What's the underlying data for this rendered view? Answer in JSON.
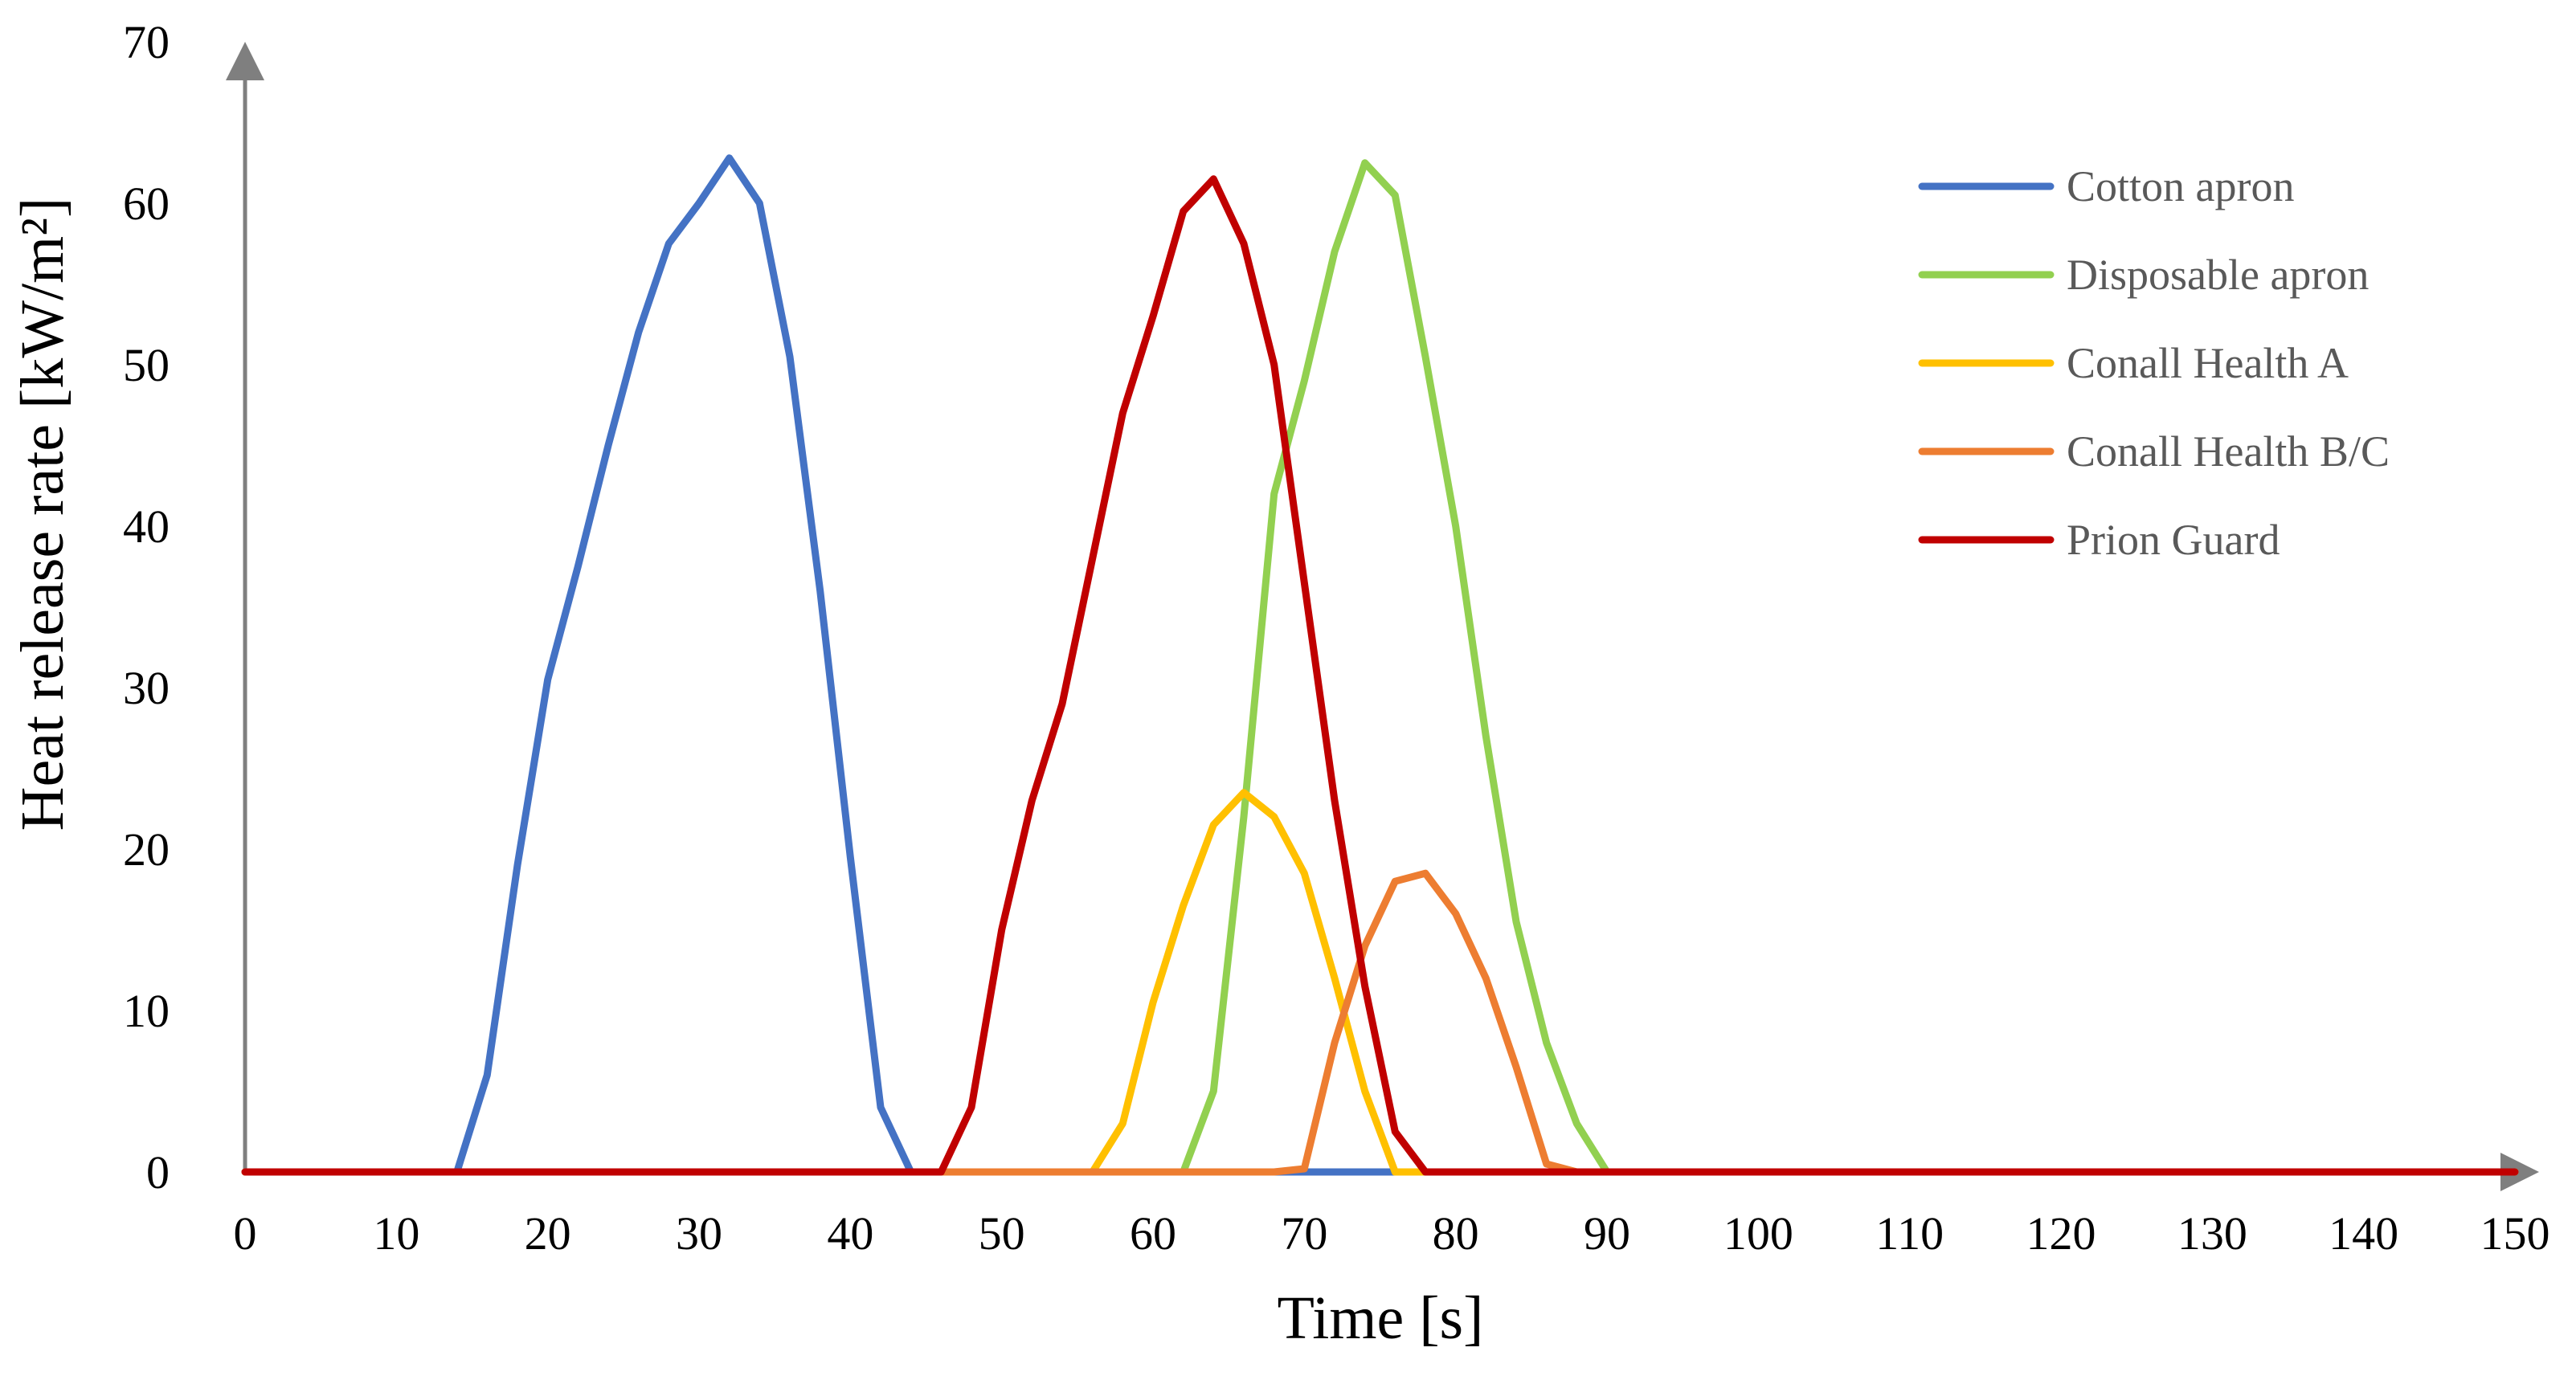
{
  "chart_data": {
    "type": "line",
    "title": "",
    "xlabel": "Time [s]",
    "ylabel": "Heat release rate [kW/m²]",
    "xlim": [
      0,
      150
    ],
    "ylim": [
      0,
      70
    ],
    "xticks": [
      0,
      10,
      20,
      30,
      40,
      50,
      60,
      70,
      80,
      90,
      100,
      110,
      120,
      130,
      140,
      150
    ],
    "yticks": [
      0,
      10,
      20,
      30,
      40,
      50,
      60,
      70
    ],
    "grid": false,
    "legend_position": "top-right",
    "series": [
      {
        "name": "Cotton apron",
        "color": "#4472C4",
        "x": [
          0,
          14,
          16,
          18,
          20,
          22,
          24,
          26,
          28,
          30,
          32,
          34,
          36,
          38,
          40,
          42,
          44,
          46,
          150
        ],
        "y": [
          0,
          0,
          6,
          19,
          30.5,
          37.5,
          45,
          52,
          57.5,
          60,
          62.8,
          60,
          50.5,
          36,
          19.5,
          4,
          0,
          0,
          0
        ]
      },
      {
        "name": "Disposable apron",
        "color": "#92D050",
        "x": [
          0,
          62,
          64,
          66,
          68,
          70,
          72,
          74,
          76,
          78,
          80,
          82,
          84,
          86,
          88,
          90,
          150
        ],
        "y": [
          0,
          0,
          5,
          22,
          42,
          49,
          57,
          62.5,
          60.5,
          50.5,
          40,
          27,
          15.5,
          8,
          3,
          0,
          0
        ]
      },
      {
        "name": "Conall Health A",
        "color": "#FFC000",
        "x": [
          0,
          56,
          58,
          60,
          62,
          64,
          66,
          68,
          70,
          72,
          74,
          76,
          78,
          150
        ],
        "y": [
          0,
          0,
          3,
          10.5,
          16.5,
          21.5,
          23.5,
          22,
          18.5,
          12,
          5,
          0,
          0,
          0
        ]
      },
      {
        "name": "Conall Health B/C",
        "color": "#ED7D31",
        "x": [
          0,
          68,
          70,
          72,
          74,
          76,
          78,
          80,
          82,
          84,
          86,
          88,
          90,
          150
        ],
        "y": [
          0,
          0,
          0.2,
          8,
          14,
          18,
          18.5,
          16,
          12,
          6.5,
          0.5,
          0,
          0,
          0
        ]
      },
      {
        "name": "Prion Guard",
        "color": "#C00000",
        "x": [
          0,
          46,
          48,
          50,
          52,
          54,
          56,
          58,
          60,
          62,
          64,
          66,
          68,
          70,
          72,
          74,
          76,
          78,
          150
        ],
        "y": [
          0,
          0,
          4,
          15,
          23,
          29,
          38,
          47,
          53,
          59.5,
          61.5,
          57.5,
          50,
          36.5,
          23,
          11.5,
          2.5,
          0,
          0
        ]
      }
    ]
  }
}
